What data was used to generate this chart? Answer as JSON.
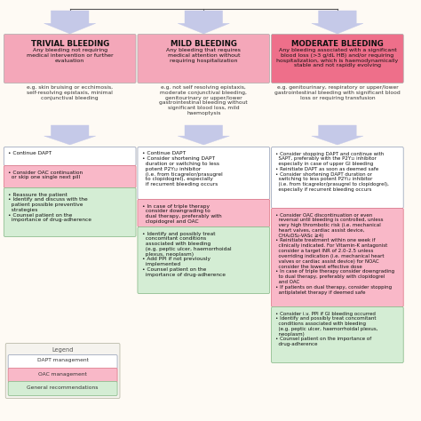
{
  "bg_color": "#fefaf4",
  "col_headers": [
    {
      "label": "TRIVIAL BLEEDING",
      "bg": "#f4a7b9",
      "fg": "#000000"
    },
    {
      "label": "MILD BLEEDING",
      "bg": "#f4a7b9",
      "fg": "#000000"
    },
    {
      "label": "MODERATE BLEEDING",
      "bg": "#ee6f8a",
      "fg": "#000000"
    }
  ],
  "col_subtitles": [
    "Any bleeding not requiring\nmedical intervention or further\nevaluation",
    "Any bleeding that requires\nmedical attention without\nrequiring hospitalization",
    "Any bleeding associated with a significant\nblood loss (>3 g/dL HB) and/or requiring\nhospitalization, which is haemodynamically\nstable and not rapidly evolving"
  ],
  "col_examples": [
    "e.g. skin bruising or ecchimosis,\nself-resolving epistaxis, minimal\nconjunctival bleeding",
    "e.g. not self resolving epistaxis,\nmoderate conjunctival bleeding,\ngenitourinary or upper/lower\ngastrointestinal bleeding without\nsignificant blood loss, mild\nhaemoptysis",
    "e.g. genitourinary, respiratory or upper/lower\ngastrointestinal bleeding with significant blood\nloss or requiring transfusion"
  ],
  "arrow_color": "#c5c9e8",
  "boxes_col0": [
    {
      "text": "• Continue DAPT",
      "bg": "#ffffff",
      "border": "#a0aabf"
    },
    {
      "text": "• Consider OAC continuation\n  or skip one single next pill",
      "bg": "#f9b8c8",
      "border": "#e08090"
    },
    {
      "text": "• Reassure the patient\n• Identify and discuss with the\n  patient possible preventive\n  strategies\n• Counsel patient on the\n  importance of drug-adherence",
      "bg": "#d4edd4",
      "border": "#90be90"
    }
  ],
  "boxes_col1": [
    {
      "text": "• Continue DAPT\n• Consider shortening DAPT\n  duration or switching to less\n  potent P2Y₁₂ inhibitor\n  (i.e. from ticagrelor/prasugrel\n  to clopidogrel), especially\n  if recurrent bleeding occurs",
      "bg": "#ffffff",
      "border": "#a0aabf"
    },
    {
      "text": "• In case of triple therapy\n  consider downgrading to\n  dual therapy, preferably with\n  clopidogrel and OAC",
      "bg": "#f9b8c8",
      "border": "#e08090"
    },
    {
      "text": "• Identify and possibly treat\n  concomitant conditions\n  associated with bleeding\n  (e.g. peptic ulcer, haemorrhoidal\n  plexus, neoplasm)\n• Add PPI if not previously\n  implemented\n• Counsel patient on the\n  importance of drug-adherence",
      "bg": "#d4edd4",
      "border": "#90be90"
    }
  ],
  "boxes_col2": [
    {
      "text": "• Consider stopping DAPT and continue with\n  SAPT, preferably with the P2Y₁₂ inhibitor\n  especially in case of upper GI bleeding\n• Reinitiate DAPT as soon as deemed safe\n• Consider shortening DAPT duration or\n  switching to less potent P2Y₁₂ inhibitor\n  (i.e. from ticagrelor/prasugrel to clopidogrel),\n  especially if recurrent bleeding occurs",
      "bg": "#ffffff",
      "border": "#a0aabf"
    },
    {
      "text": "• Consider OAC discontinuation or even\n  reversal until bleeding is controlled, unless\n  very high thrombotic risk (i.e. mechanical\n  heart valves, cardiac assist device,\n  CHA₂DS₂-VASc ≥4)\n• Reinitiate treatment within one week if\n  clinically indicated. For Vitamin-K antagonist\n  consider a target INR of 2.0–2.5 unless\n  overriding indication (i.e. mechanical heart\n  valves or cardiac assist device) for NOAC\n  consider the lowest effective dose\n• In case of triple therapy consider downgrading\n  to dual therapy, preferably with clopidogrel\n  and OAC\n• If patients on dual therapy, consider stopping\n  antiplatelet therapy if deemed safe",
      "bg": "#f9b8c8",
      "border": "#e08090"
    },
    {
      "text": "• Consider i.v. PPI if GI bleeding occurred\n• Identify and possibly treat concomitant\n  conditions associated with bleeding\n  (e.g. peptic ulcer, haemorrhoidal plexus,\n  neoplasm)\n• Counsel patient on the importance of\n  drug-adherence",
      "bg": "#d4edd4",
      "border": "#90be90"
    }
  ],
  "legend_items": [
    {
      "label": "DAPT management",
      "bg": "#ffffff",
      "border": "#a0aabf"
    },
    {
      "label": "OAC management",
      "bg": "#f9b8c8",
      "border": "#e08090"
    },
    {
      "label": "General recommendations",
      "bg": "#d4edd4",
      "border": "#90be90"
    }
  ]
}
